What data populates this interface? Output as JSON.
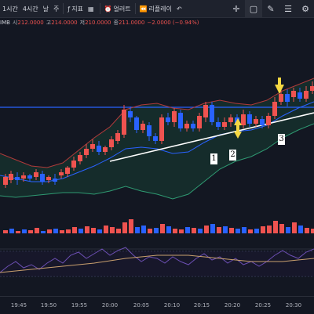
{
  "toolbar": {
    "items": [
      {
        "label": "1시간"
      },
      {
        "label": "4시간"
      },
      {
        "label": "날"
      },
      {
        "label": "주"
      }
    ],
    "indicators_label": "지표",
    "templates_icon": "grid-icon",
    "alert_label": "얼러트",
    "replay_label": "리플레이",
    "undo_icon": "undo-icon",
    "drawing_tools": [
      "crosshair-icon",
      "rectangle-icon",
      "brush-icon",
      "horizontal-lines-icon",
      "settings-icon"
    ]
  },
  "ohlc": {
    "symbol": "IMB",
    "open_key": "시",
    "open": "212.0000",
    "high_key": "고",
    "high": "214.0000",
    "low_key": "저",
    "low": "210.0000",
    "close_key": "종",
    "close": "211.0000",
    "change": "−2.0000 (−0.94%)"
  },
  "time_axis": [
    "19:45",
    "19:50",
    "19:55",
    "20:00",
    "20:05",
    "20:10",
    "20:15",
    "20:20",
    "20:25",
    "20:30"
  ],
  "wave_labels": [
    "1",
    "2",
    "3"
  ],
  "colors": {
    "background": "#131722",
    "up": "#ef5350",
    "down": "#2962ff",
    "band": "#2f9a72",
    "band_fill": "#16302d",
    "upper_band": "#b03a3a",
    "mid_line": "#2962ff",
    "trendline": "#ffffff",
    "horizontal_level": "#2962ff",
    "arrow": "#f5d742",
    "rsi_line": "#6c4fb3",
    "rsi_ma": "#c9a06e"
  }
}
